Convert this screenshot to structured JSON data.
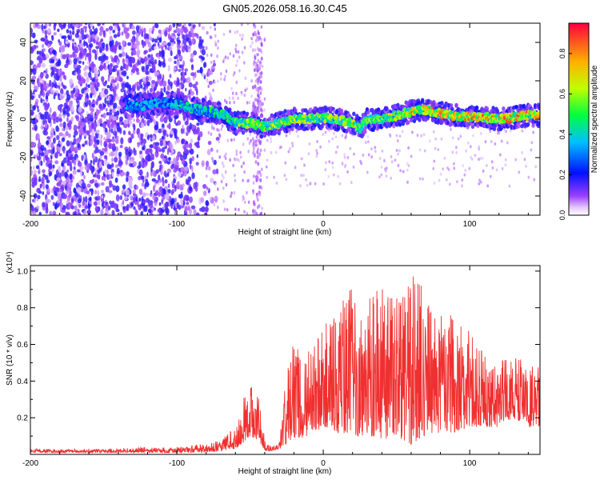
{
  "figure": {
    "title": "GN05.2026.058.16.30.C45"
  },
  "chart_data": [
    {
      "type": "heatmap",
      "title": "GN05.2026.058.16.30.C45",
      "xlabel": "Height of straight line (km)",
      "ylabel": "Frequency (Hz)",
      "xlim": [
        -200,
        148
      ],
      "ylim": [
        -50,
        50
      ],
      "xticks": [
        -200,
        -100,
        0,
        100
      ],
      "yticks": [
        -40,
        -20,
        0,
        20,
        40
      ],
      "colorbar": {
        "label": "Normalized spectral amplitude",
        "range": [
          0,
          0.95
        ],
        "ticks": [
          0.0,
          0.2,
          0.4,
          0.6,
          0.8
        ]
      },
      "ridge": {
        "description": "dominant frequency track vs height",
        "x": [
          -135,
          -125,
          -110,
          -100,
          -85,
          -70,
          -60,
          -50,
          -40,
          -30,
          -20,
          -10,
          0,
          10,
          20,
          25,
          30,
          40,
          50,
          60,
          70,
          80,
          90,
          100,
          110,
          120,
          130,
          140,
          148
        ],
        "y": [
          7,
          7,
          9,
          8,
          5,
          3,
          -2,
          -2,
          -4,
          -2,
          0,
          0,
          1,
          0,
          -2,
          -5,
          0,
          0,
          2,
          4,
          5,
          3,
          2,
          1,
          1,
          0,
          1,
          2,
          2
        ]
      }
    },
    {
      "type": "line",
      "xlabel": "Height of straight line (km)",
      "ylabel": "SNR (10 * v/v)",
      "y_multiplier": "(x10⁴)",
      "xlim": [
        -200,
        148
      ],
      "ylim": [
        0,
        1.03
      ],
      "xticks": [
        -200,
        -100,
        0,
        100
      ],
      "yticks": [
        0.2,
        0.4,
        0.6,
        0.8,
        1.0
      ],
      "series": [
        {
          "name": "SNR",
          "color": "#f03030",
          "x": [
            -200,
            -150,
            -120,
            -100,
            -80,
            -70,
            -60,
            -55,
            -50,
            -45,
            -40,
            -35,
            -30,
            -25,
            -20,
            -10,
            0,
            10,
            20,
            30,
            40,
            50,
            60,
            70,
            80,
            90,
            100,
            110,
            120,
            130,
            140,
            148
          ],
          "y_peak": [
            0.03,
            0.03,
            0.04,
            0.04,
            0.06,
            0.08,
            0.15,
            0.3,
            0.36,
            0.42,
            0.08,
            0.04,
            0.06,
            0.52,
            0.62,
            0.58,
            0.7,
            0.8,
            0.92,
            0.85,
            0.95,
            0.9,
            1.02,
            0.88,
            0.8,
            0.75,
            0.68,
            0.55,
            0.5,
            0.55,
            0.5,
            0.48
          ],
          "y_floor": [
            0.01,
            0.01,
            0.01,
            0.01,
            0.01,
            0.02,
            0.03,
            0.06,
            0.1,
            0.08,
            0.02,
            0.02,
            0.03,
            0.05,
            0.08,
            0.1,
            0.15,
            0.12,
            0.1,
            0.1,
            0.08,
            0.1,
            0.05,
            0.1,
            0.12,
            0.12,
            0.15,
            0.15,
            0.15,
            0.2,
            0.15,
            0.15
          ]
        }
      ]
    }
  ]
}
